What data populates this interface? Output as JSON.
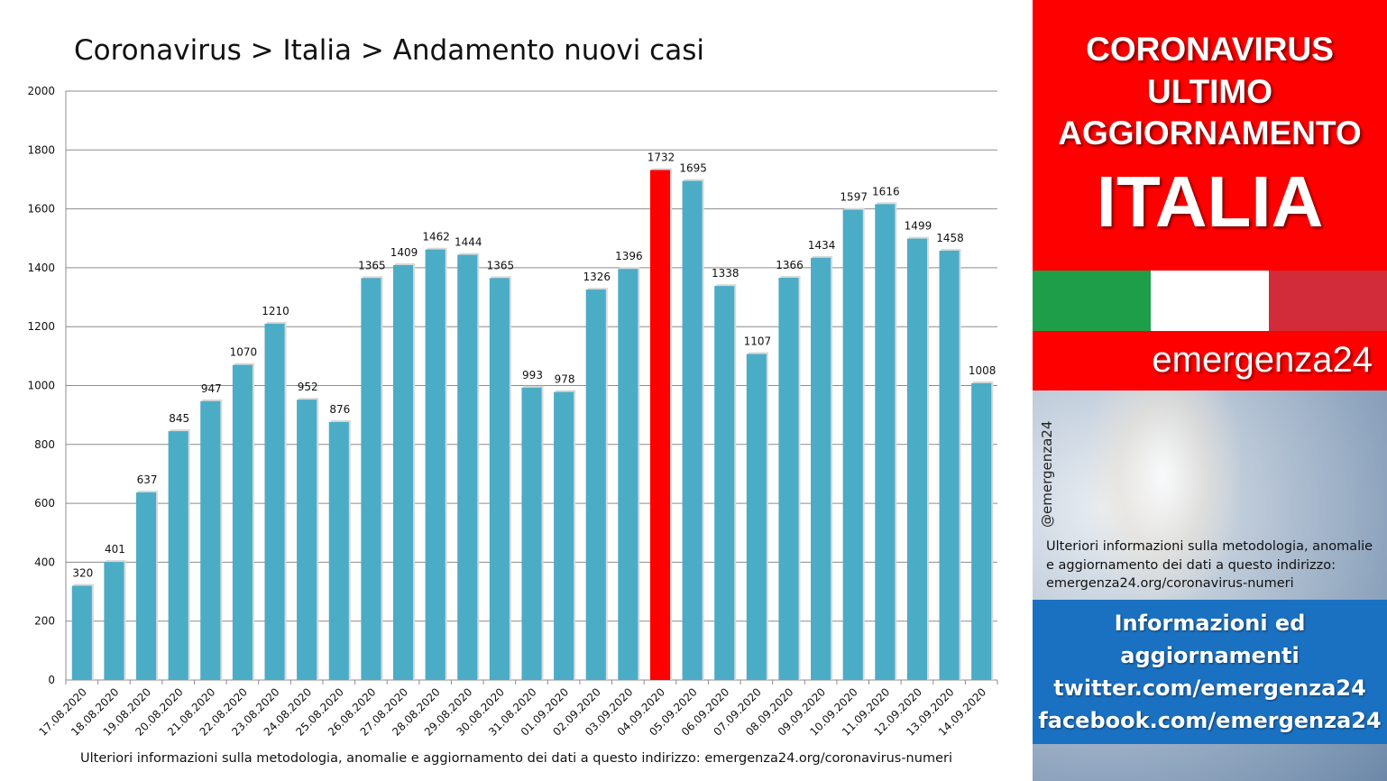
{
  "chart_title": "Coronavirus > Italia > Andamento nuovi casi",
  "footer_note": "Ulteriori informazioni sulla metodologia, anomalie e aggiornamento dei dati a questo indirizzo: emergenza24.org/coronavirus-numeri",
  "colors": {
    "bar": "#4bacc6",
    "highlight_bar": "#ff0000",
    "header_red": "#ff0000",
    "flag_green": "#1e9e48",
    "flag_white": "#ffffff",
    "flag_red": "#d22b3a",
    "info_blue": "#1b71c1"
  },
  "chart_data": {
    "type": "bar",
    "title": "Coronavirus > Italia > Andamento nuovi casi",
    "xlabel": "",
    "ylabel": "",
    "ylim": [
      0,
      2000
    ],
    "yticks": [
      0,
      200,
      400,
      600,
      800,
      1000,
      1200,
      1400,
      1600,
      1800,
      2000
    ],
    "grid": true,
    "categories": [
      "17.08.2020",
      "18.08.2020",
      "19.08.2020",
      "20.08.2020",
      "21.08.2020",
      "22.08.2020",
      "23.08.2020",
      "24.08.2020",
      "25.08.2020",
      "26.08.2020",
      "27.08.2020",
      "28.08.2020",
      "29.08.2020",
      "30.08.2020",
      "31.08.2020",
      "01.09.2020",
      "02.09.2020",
      "03.09.2020",
      "04.09.2020",
      "05.09.2020",
      "06.09.2020",
      "07.09.2020",
      "08.09.2020",
      "09.09.2020",
      "10.09.2020",
      "11.09.2020",
      "12.09.2020",
      "13.09.2020",
      "14.09.2020"
    ],
    "values": [
      320,
      401,
      637,
      845,
      947,
      1070,
      1210,
      952,
      876,
      1365,
      1409,
      1462,
      1444,
      1365,
      993,
      978,
      1326,
      1396,
      1732,
      1695,
      1338,
      1107,
      1366,
      1434,
      1597,
      1616,
      1499,
      1458,
      1008
    ],
    "highlight_category": "04.09.2020"
  },
  "panel": {
    "header_line1": "CORONAVIRUS",
    "header_line2": "ULTIMO",
    "header_line3": "AGGIORNAMENTO",
    "header_country": "ITALIA",
    "brand": "emergenza24",
    "handle": "@emergenza24",
    "info_line1": "Ulteriori informazioni sulla metodologia, anomalie",
    "info_line2": "e aggiornamento dei dati a questo indirizzo:",
    "info_line3": "emergenza24.org/coronavirus-numeri",
    "blue_line1": "Informazioni ed",
    "blue_line2": "aggiornamenti",
    "blue_line3": "twitter.com/emergenza24",
    "blue_line4": "facebook.com/emergenza24"
  }
}
